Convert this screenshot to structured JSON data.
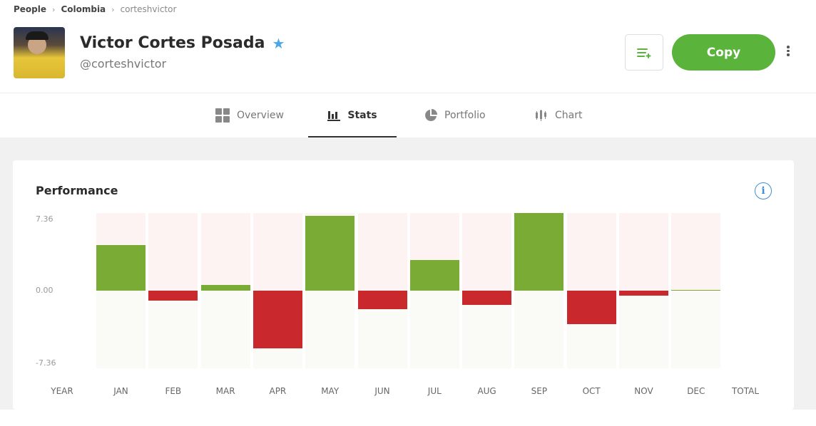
{
  "breadcrumb": [
    "People",
    "Colombia",
    "corteshvictor"
  ],
  "profile": {
    "name": "Victor Cortes Posada",
    "handle": "@corteshvictor",
    "verified_icon": "star-icon"
  },
  "actions": {
    "copy_label": "Copy",
    "watchlist_icon": "add-to-list-icon",
    "more_icon": "more-vertical-icon"
  },
  "tabs": [
    {
      "label": "Overview",
      "icon": "grid-icon",
      "active": false
    },
    {
      "label": "Stats",
      "icon": "bar-chart-icon",
      "active": true
    },
    {
      "label": "Portfolio",
      "icon": "pie-chart-icon",
      "active": false
    },
    {
      "label": "Chart",
      "icon": "candlestick-icon",
      "active": false
    }
  ],
  "performance": {
    "title": "Performance",
    "info_icon": "info-icon"
  },
  "colors": {
    "positive": "#7aab35",
    "negative": "#c9282d",
    "accent": "#5ab33a"
  },
  "chart_data": {
    "type": "bar",
    "categories": [
      "JAN",
      "FEB",
      "MAR",
      "APR",
      "MAY",
      "JUN",
      "JUL",
      "AUG",
      "SEP",
      "OCT",
      "NOV",
      "DEC"
    ],
    "values": [
      4.32,
      -0.95,
      0.54,
      -5.47,
      7.09,
      -1.76,
      2.9,
      -1.35,
      7.36,
      -3.18,
      -0.47,
      0.05
    ],
    "ylim": [
      -7.36,
      7.36
    ],
    "yticks": [
      "7.36",
      "0.00",
      "-7.36"
    ],
    "xlabel_left": "YEAR",
    "xlabel_right": "TOTAL",
    "grid": false
  }
}
